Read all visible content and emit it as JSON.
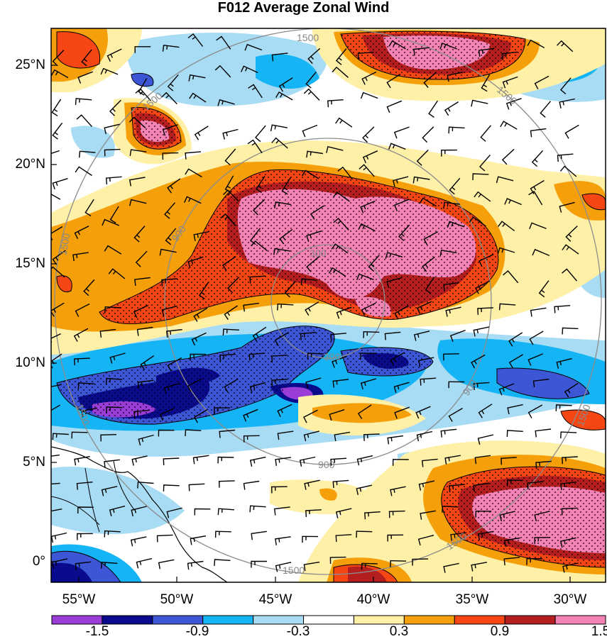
{
  "title": "F012 Average Zonal Wind",
  "latitude_labels": [
    "25°N",
    "20°N",
    "15°N",
    "10°N",
    "5°N",
    "0°"
  ],
  "longitude_labels": [
    "55°W",
    "50°W",
    "45°W",
    "40°W",
    "35°W",
    "30°W"
  ],
  "range_rings": [
    "300",
    "900",
    "1500"
  ],
  "colorbar": {
    "labels": [
      "-1.5",
      "-0.9",
      "-0.3",
      "0.3",
      "0.9",
      "1.5"
    ],
    "colors": [
      "#9a3cd6",
      "#0a0a8c",
      "#3c56d6",
      "#14b4f5",
      "#a8dcf5",
      "#ffffff",
      "#fff0a8",
      "#f5a00a",
      "#f54614",
      "#b41e1e",
      "#f582b4"
    ]
  },
  "colors": {
    "frame": "#000000",
    "coastline": "#000000",
    "range_ring": "#8c8c8c",
    "stipple": "#000000"
  }
}
